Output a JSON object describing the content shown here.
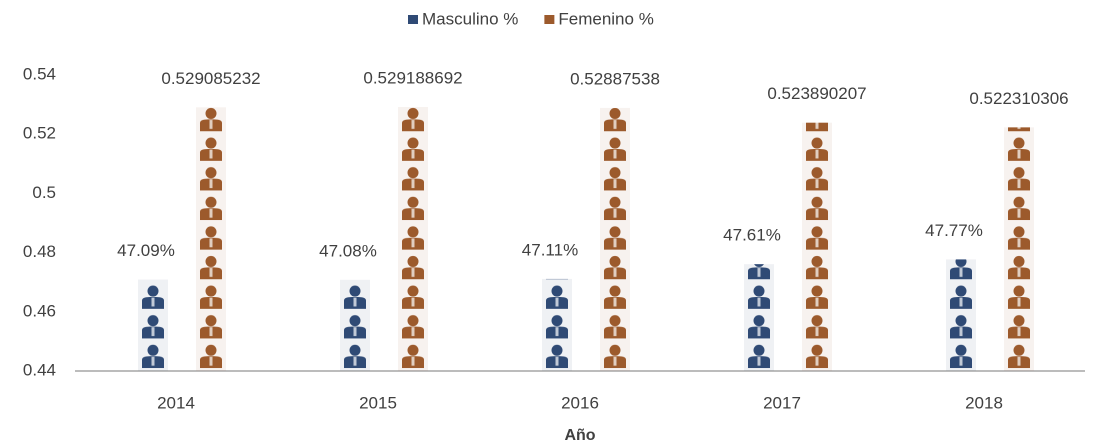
{
  "chart_data": {
    "type": "bar",
    "x_label": "Año",
    "categories": [
      "2014",
      "2015",
      "2016",
      "2017",
      "2018"
    ],
    "series": [
      {
        "name": "Masculino %",
        "color": "#2f4a75",
        "values": [
          0.4709,
          0.4708,
          0.4711,
          0.4761,
          0.4777
        ],
        "value_labels": [
          "47.09%",
          "47.08%",
          "47.11%",
          "47.61%",
          "47.77%"
        ]
      },
      {
        "name": "Femenino %",
        "color": "#9c5a2c",
        "values": [
          0.529085232,
          0.529188692,
          0.52887538,
          0.523890207,
          0.522310306
        ]
      }
    ],
    "ylim": [
      0.44,
      0.54
    ],
    "yticks": [
      0.44,
      0.46,
      0.48,
      0.5,
      0.52,
      0.54
    ],
    "legend": "top",
    "grid": false
  }
}
